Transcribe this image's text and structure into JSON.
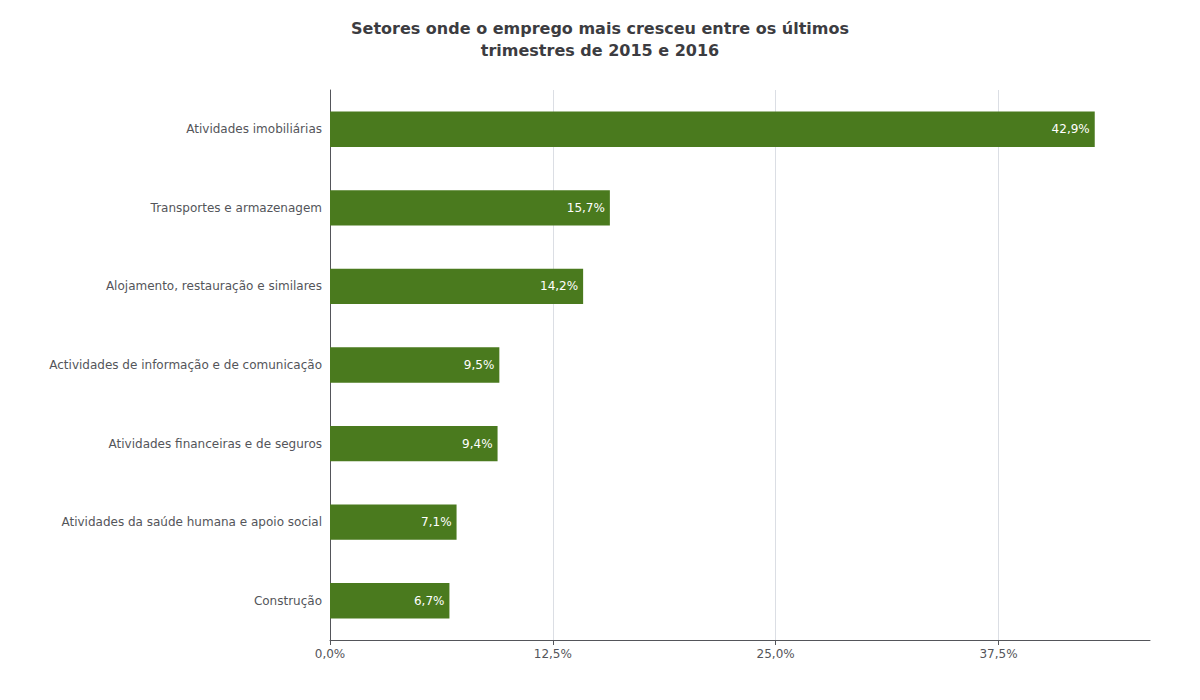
{
  "chart_data": {
    "type": "bar",
    "orientation": "horizontal",
    "title": "Setores onde o emprego mais cresceu entre os últimos\ntrimestres de 2015 e 2016",
    "categories": [
      "Construção",
      "Atividades da saúde humana e apoio social",
      "Atividades financeiras e de seguros",
      "Actividades de informação e de comunicação",
      "Alojamento, restauração e similares",
      "Transportes e armazenagem",
      "Atividades imobiliárias"
    ],
    "values": [
      6.7,
      7.1,
      9.4,
      9.5,
      14.2,
      15.7,
      42.9
    ],
    "value_labels": [
      "6,7%",
      "7,1%",
      "9,4%",
      "9,5%",
      "14,2%",
      "15,7%",
      "42,9%"
    ],
    "data_labels": true,
    "color": "#4a7a1e",
    "xlim": [
      0,
      46
    ],
    "xticks": [
      {
        "value": 0.0,
        "label": "0,0%"
      },
      {
        "value": 12.5,
        "label": "12,5%"
      },
      {
        "value": 25.0,
        "label": "25,0%"
      },
      {
        "value": 37.5,
        "label": "37,5%"
      }
    ],
    "grid": true
  }
}
